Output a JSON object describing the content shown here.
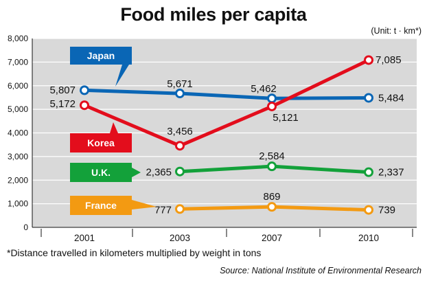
{
  "header": {
    "title": "Food miles per capita",
    "unit": "(Unit: t · km*)"
  },
  "footer": {
    "footnote": "*Distance travelled in kilometers multiplied by weight in tons",
    "source": "Source: National Institute of Environmental Research"
  },
  "chart_data": {
    "type": "line",
    "title": "Food miles per capita",
    "unit_note": "(Unit: t · km*)",
    "categories": [
      "2001",
      "2003",
      "2007",
      "2010"
    ],
    "y_ticks": [
      "0",
      "1,000",
      "2,000",
      "3,000",
      "4,000",
      "5,000",
      "6,000",
      "7,000",
      "8,000"
    ],
    "ylim": [
      0,
      8000
    ],
    "grid": true,
    "legend": "inline tags",
    "series": [
      {
        "name": "Japan",
        "color": "#0a66b5",
        "values": [
          5807,
          5671,
          5462,
          5484
        ],
        "labels": [
          "5,807",
          "5,671",
          "5,462",
          "5,484"
        ]
      },
      {
        "name": "Korea",
        "color": "#e30d1c",
        "values": [
          5172,
          3456,
          5121,
          7085
        ],
        "labels": [
          "5,172",
          "3,456",
          "5,121",
          "7,085"
        ]
      },
      {
        "name": "U.K.",
        "color": "#13a13a",
        "values": [
          null,
          2365,
          2584,
          2337
        ],
        "labels": [
          null,
          "2,365",
          "2,584",
          "2,337"
        ]
      },
      {
        "name": "France",
        "color": "#f39a12",
        "values": [
          null,
          777,
          869,
          739
        ],
        "labels": [
          null,
          "777",
          "869",
          "739"
        ]
      }
    ]
  }
}
